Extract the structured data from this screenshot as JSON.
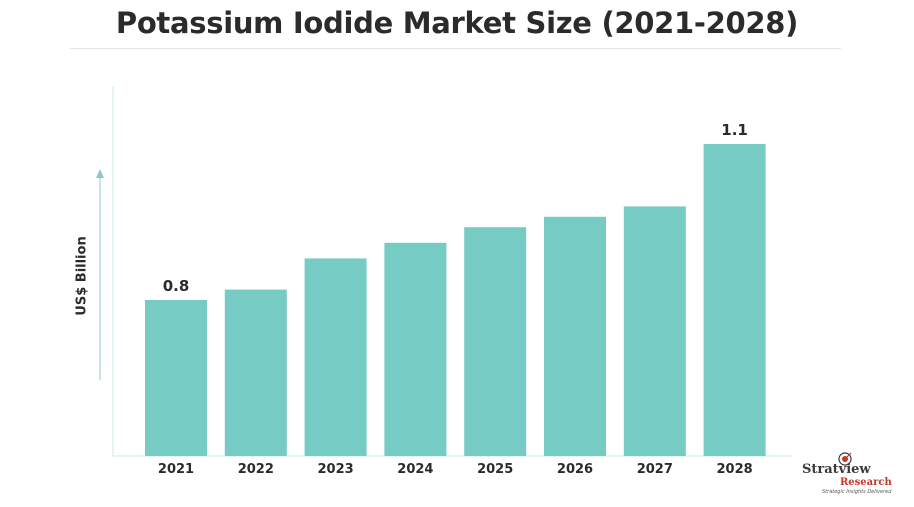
{
  "chart_data": {
    "type": "bar",
    "title": "Potassium Iodide Market Size (2021-2028)",
    "ylabel": "US$ Billion",
    "xlabel": "",
    "categories": [
      "2021",
      "2022",
      "2023",
      "2024",
      "2025",
      "2026",
      "2027",
      "2028"
    ],
    "values": [
      0.8,
      0.82,
      0.88,
      0.91,
      0.94,
      0.96,
      0.98,
      1.1
    ],
    "data_labels": {
      "0": "0.8",
      "7": "1.1"
    },
    "ylim": [
      0.5,
      1.15
    ],
    "grid": false,
    "legend": "none",
    "colors": {
      "bar": "#77cbc5",
      "axis": "#cfe9ea",
      "arrow": "#8cc9cf",
      "text": "#2b2b2b"
    }
  },
  "logo": {
    "name": "Stratview",
    "sub": "Research",
    "tagline": "Strategic Insights Delivered"
  }
}
